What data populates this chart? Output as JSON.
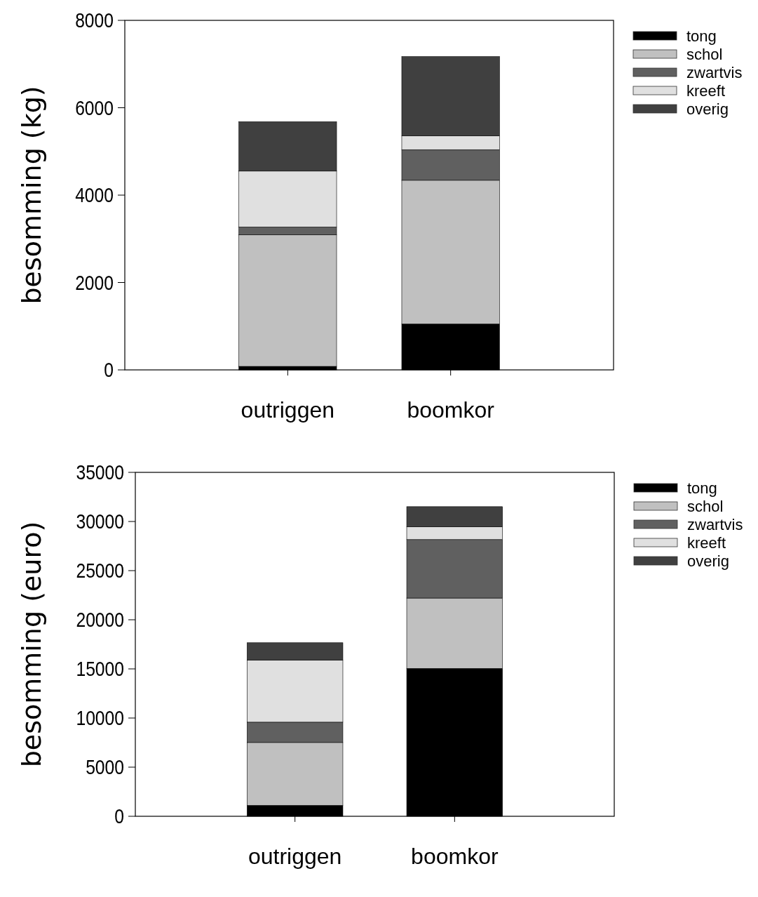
{
  "chart_data": [
    {
      "type": "bar",
      "stacked": true,
      "ylabel": "besomming (kg)",
      "categories": [
        "outriggen",
        "boomkor"
      ],
      "ylim": [
        0,
        8000
      ],
      "yticks": [
        0,
        2000,
        4000,
        6000,
        8000
      ],
      "legend": "right",
      "grid": false,
      "series": [
        {
          "name": "tong",
          "color": "#000000",
          "values": [
            80,
            1050
          ]
        },
        {
          "name": "schol",
          "color": "#c0c0c0",
          "values": [
            3010,
            3290
          ]
        },
        {
          "name": "zwartvis",
          "color": "#606060",
          "values": [
            180,
            700
          ]
        },
        {
          "name": "kreeft",
          "color": "#e0e0e0",
          "values": [
            1280,
            320
          ]
        },
        {
          "name": "overig",
          "color": "#404040",
          "values": [
            1130,
            1810
          ]
        }
      ]
    },
    {
      "type": "bar",
      "stacked": true,
      "ylabel": "besomming (euro)",
      "categories": [
        "outriggen",
        "boomkor"
      ],
      "ylim": [
        0,
        35000
      ],
      "yticks": [
        0,
        5000,
        10000,
        15000,
        20000,
        25000,
        30000,
        35000
      ],
      "legend": "right",
      "grid": false,
      "series": [
        {
          "name": "tong",
          "color": "#000000",
          "values": [
            1110,
            15050
          ]
        },
        {
          "name": "schol",
          "color": "#c0c0c0",
          "values": [
            6400,
            7160
          ]
        },
        {
          "name": "zwartvis",
          "color": "#606060",
          "values": [
            2070,
            5950
          ]
        },
        {
          "name": "kreeft",
          "color": "#e0e0e0",
          "values": [
            6300,
            1310
          ]
        },
        {
          "name": "overig",
          "color": "#404040",
          "values": [
            1780,
            2040
          ]
        }
      ]
    }
  ]
}
